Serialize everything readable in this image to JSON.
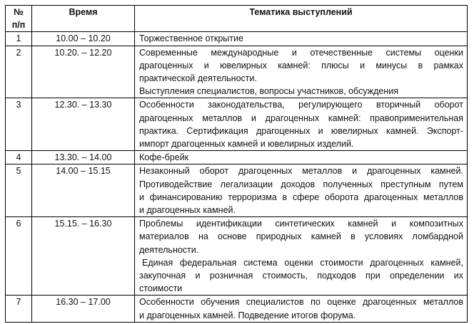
{
  "header": {
    "num": [
      "№",
      "п/п"
    ],
    "time": "Время",
    "topic": "Тематика выступлений"
  },
  "rows": [
    {
      "num": "1",
      "time": "10.00 – 10.20",
      "topic": [
        [
          "Торжественное открытие"
        ]
      ]
    },
    {
      "num": "2",
      "time": "10.20. – 12.20",
      "topic": [
        [
          "Современные международные и отечественные системы оценки",
          "драгоценных и ювелирных камней: плюсы и минусы в рамках",
          "практической деятельности."
        ],
        [
          "Выступления специалистов, вопросы участников, обсуждения"
        ]
      ]
    },
    {
      "num": "3",
      "time": "12.30. – 13.30",
      "topic": [
        [
          "Особенности законодательства, регулирующего вторичный оборот",
          "драгоценных металлов и драгоценных камней: правоприменительная",
          "практика. Сертификация драгоценных и ювелирных камней. Экспорт-",
          "импорт драгоценных камней и ювелирных изделий."
        ]
      ]
    },
    {
      "num": "4",
      "time": "13.30. – 14.00",
      "topic": [
        [
          "Кофе-брейк"
        ]
      ]
    },
    {
      "num": "5",
      "time": "14.00 – 15.15",
      "topic": [
        [
          "Незаконный оборот драгоценных металлов и драгоценных камней.",
          "Противодействие легализации доходов полученных преступным путем",
          "и финансированию терроризма в сфере оборота драгоценных металлов",
          "и драгоценных камней."
        ]
      ]
    },
    {
      "num": "6",
      "time": "15.15. – 16.30",
      "topic": [
        [
          "Проблемы идентификации синтетических камней и композитных",
          "материалов на основе природных камней в условиях ломбардной",
          "деятельности."
        ],
        [
          " Единая федеральная система оценки стоимости драгоценных камней,",
          "закупочная и розничная стоимость, подходов при определении их",
          "стоимости"
        ]
      ]
    },
    {
      "num": "7",
      "time": "16.30 – 17.00",
      "topic": [
        [
          "Особенности обучения специалистов по оценке драгоценных металлов",
          "и драгоценных камней. Подведение итогов форума."
        ]
      ]
    }
  ]
}
